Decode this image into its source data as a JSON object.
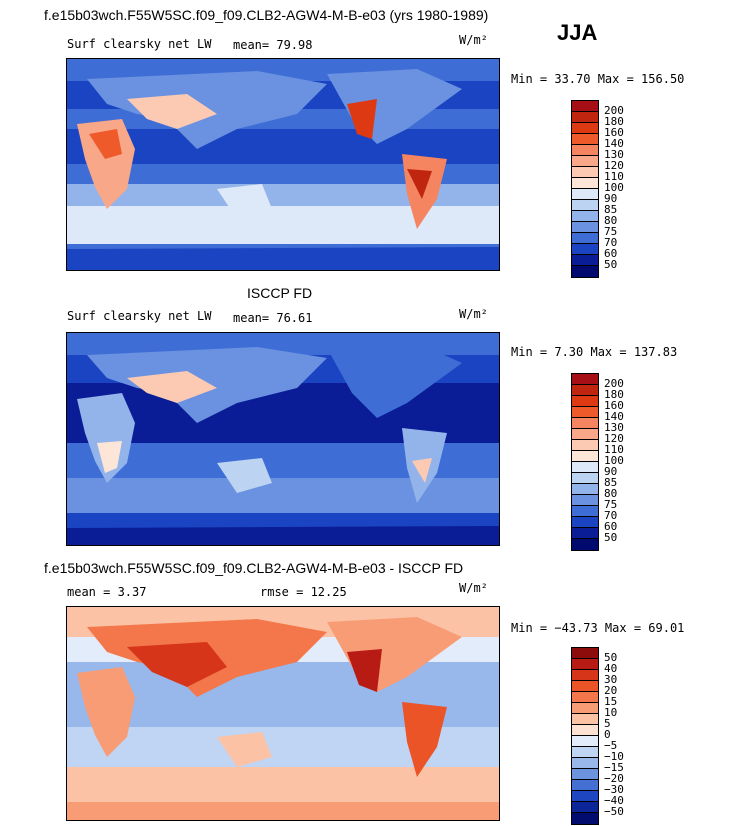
{
  "figure": {
    "title": "f.e15b03wch.F55W5SC.f09_f09.CLB2-AGW4-M-B-e03 (yrs 1980-1989)",
    "season": "JJA"
  },
  "panels": [
    {
      "id": "model",
      "left_label": "Surf clearsky net LW",
      "stat1": "mean=  79.98",
      "units": "W/m²",
      "minmax": "Min =   33.70 Max =  156.50",
      "mean_value": 79.98,
      "min_value": 33.7,
      "max_value": 156.5
    },
    {
      "id": "obs",
      "heading": "ISCCP FD",
      "left_label": "Surf clearsky net LW",
      "stat1": "mean=  76.61",
      "units": "W/m²",
      "minmax": "Min =    7.30 Max =  137.83",
      "mean_value": 76.61,
      "min_value": 7.3,
      "max_value": 137.83
    },
    {
      "id": "diff",
      "heading": "f.e15b03wch.F55W5SC.f09_f09.CLB2-AGW4-M-B-e03 - ISCCP FD",
      "left_label": "mean =    3.37",
      "stat1": "rmse =   12.25",
      "units": "W/m²",
      "minmax": "Min = −43.73 Max =   69.01",
      "mean_value": 3.37,
      "rmse_value": 12.25,
      "min_value": -43.73,
      "max_value": 69.01
    }
  ],
  "colorbars": {
    "abs": {
      "labels": [
        "200",
        "180",
        "160",
        "140",
        "130",
        "120",
        "110",
        "100",
        "90",
        "85",
        "80",
        "75",
        "70",
        "60",
        "50"
      ],
      "colors": [
        "#a50f15",
        "#c0260f",
        "#dd3a14",
        "#ef5a2a",
        "#f58460",
        "#f8a788",
        "#fccab3",
        "#fde6d8",
        "#dde9f8",
        "#bcd3f2",
        "#93b4ea",
        "#6a92e0",
        "#3f6dd6",
        "#1b44c2",
        "#0a1c96",
        "#000a6e"
      ]
    },
    "diff": {
      "labels": [
        "50",
        "40",
        "30",
        "20",
        "15",
        "10",
        "5",
        "0",
        "−5",
        "−10",
        "−15",
        "−20",
        "−30",
        "−40",
        "−50"
      ],
      "colors": [
        "#8c0c0c",
        "#b81b13",
        "#d63519",
        "#ea5426",
        "#f3774a",
        "#f89c76",
        "#fbc2a6",
        "#fde1d2",
        "#e3ecfa",
        "#c0d5f3",
        "#98b7ea",
        "#6c93de",
        "#4470d3",
        "#1e46c0",
        "#0c2599",
        "#010c6e"
      ]
    }
  }
}
